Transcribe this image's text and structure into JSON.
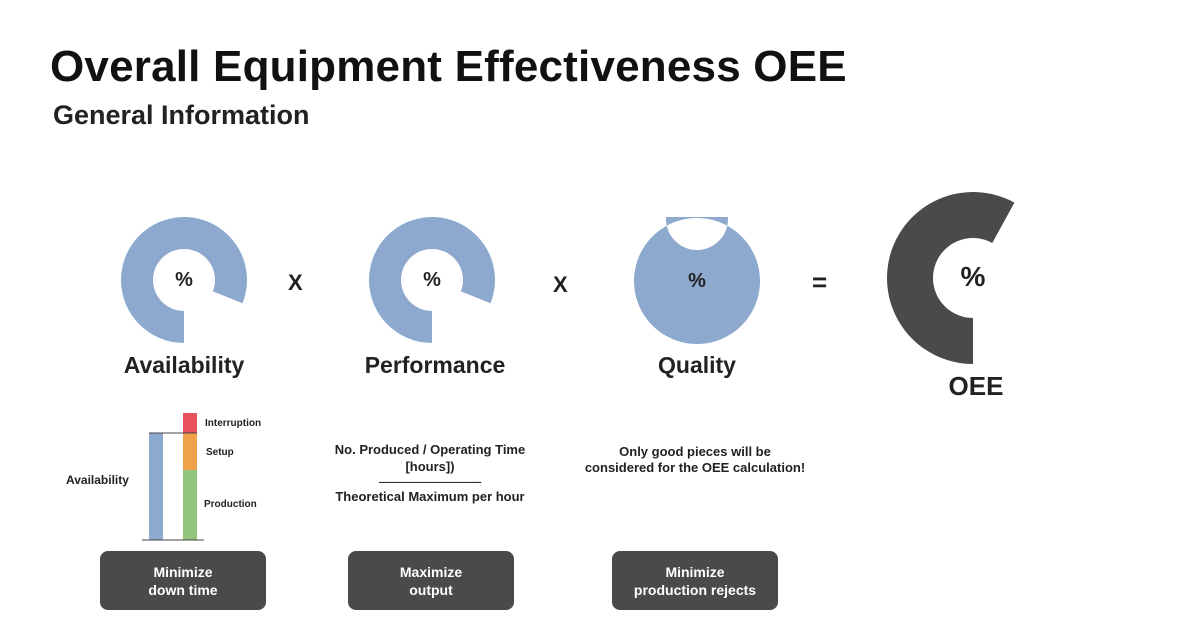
{
  "header": {
    "title": "Overall Equipment Effectiveness OEE",
    "subtitle": "General Information"
  },
  "gauges": [
    {
      "label": "Availability",
      "symbol": "%",
      "fill_fraction": 0.81,
      "color": "#8ea9ce"
    },
    {
      "label": "Performance",
      "symbol": "%",
      "fill_fraction": 0.81,
      "color": "#8ea9ce"
    },
    {
      "label": "Quality",
      "symbol": "%",
      "fill_fraction": 1.0,
      "color": "#8ea9ce"
    },
    {
      "label": "OEE",
      "symbol": "%",
      "fill_fraction": 0.58,
      "color": "#4a4a4a"
    }
  ],
  "operators": {
    "times_1": "X",
    "times_2": "X",
    "equals": "="
  },
  "availability_chart": {
    "axis_label": "Availability",
    "segments": [
      {
        "label": "Interruption",
        "color": "#e8515a"
      },
      {
        "label": "Setup",
        "color": "#f0a24b"
      },
      {
        "label": "Production",
        "color": "#93c47d"
      }
    ],
    "bar_color": "#8ea9ce"
  },
  "performance_formula": {
    "numerator_1": "No. Produced / Operating Time",
    "numerator_2": "[hours])",
    "divider": "-----------------------------------------",
    "denominator": "Theoretical Maximum per hour"
  },
  "quality_note": {
    "line_1": "Only good pieces will be",
    "line_2": "considered for the OEE calculation!"
  },
  "buttons": [
    {
      "line_1": "Minimize",
      "line_2": "down time"
    },
    {
      "line_1": "Maximize",
      "line_2": "output"
    },
    {
      "line_1": "Minimize",
      "line_2": "production rejects"
    }
  ]
}
